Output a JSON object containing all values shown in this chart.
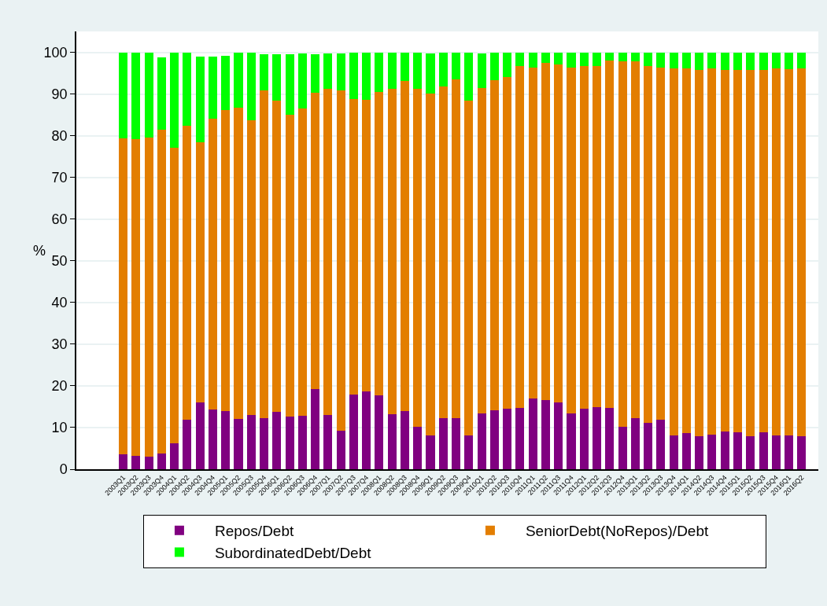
{
  "chart_data": {
    "type": "bar",
    "stacked": true,
    "categories": [
      "2003Q1",
      "2003Q2",
      "2003Q3",
      "2003Q4",
      "2004Q1",
      "2004Q2",
      "2004Q3",
      "2004Q4",
      "2005Q1",
      "2005Q2",
      "2005Q3",
      "2005Q4",
      "2006Q1",
      "2006Q2",
      "2006Q3",
      "2006Q4",
      "2007Q1",
      "2007Q2",
      "2007Q3",
      "2007Q4",
      "2008Q1",
      "2008Q2",
      "2008Q3",
      "2008Q4",
      "2009Q1",
      "2009Q2",
      "2009Q3",
      "2009Q4",
      "2010Q1",
      "2010Q2",
      "2010Q3",
      "2010Q4",
      "2011Q1",
      "2011Q2",
      "2011Q3",
      "2011Q4",
      "2012Q1",
      "2012Q2",
      "2012Q3",
      "2012Q4",
      "2013Q1",
      "2013Q2",
      "2013Q3",
      "2013Q4",
      "2014Q1",
      "2014Q2",
      "2014Q3",
      "2014Q4",
      "2015Q1",
      "2015Q2",
      "2015Q3",
      "2015Q4",
      "2016Q1",
      "2016Q2"
    ],
    "series": [
      {
        "name": "Repos/Debt",
        "color": "#800080",
        "values": [
          3.6,
          3.2,
          3.0,
          3.8,
          6.2,
          11.8,
          16.0,
          14.3,
          13.9,
          12.0,
          13.1,
          12.2,
          13.7,
          12.6,
          12.9,
          19.3,
          13.1,
          9.2,
          18.0,
          18.7,
          17.7,
          13.2,
          14.0,
          10.2,
          8.1,
          12.3,
          12.3,
          8.1,
          13.3,
          14.1,
          14.6,
          14.7,
          17.0,
          16.5,
          16.0,
          13.3,
          14.5,
          14.8,
          14.7,
          10.2,
          12.3,
          11.2,
          11.8,
          8.1,
          8.7,
          8.0,
          8.3,
          9.1,
          8.8,
          7.9,
          8.8,
          8.1,
          8.2,
          8.0
        ]
      },
      {
        "name": "SeniorDebt(NoRepos)/Debt",
        "color": "#e37e00",
        "values": [
          75.8,
          75.9,
          76.5,
          77.6,
          70.9,
          70.6,
          62.5,
          69.7,
          72.3,
          74.7,
          70.6,
          78.6,
          74.8,
          72.5,
          73.7,
          71.0,
          78.1,
          81.6,
          70.7,
          69.9,
          72.7,
          78.0,
          79.2,
          81.0,
          82.0,
          79.5,
          81.2,
          80.3,
          78.1,
          79.2,
          79.4,
          82.0,
          79.4,
          80.9,
          81.1,
          83.1,
          82.2,
          81.9,
          83.4,
          87.7,
          85.6,
          85.5,
          84.6,
          88.0,
          87.5,
          87.8,
          87.8,
          86.7,
          86.9,
          87.9,
          87.0,
          88.0,
          87.8,
          88.2
        ]
      },
      {
        "name": "SubordinatedDebt/Debt",
        "color": "#00ff00",
        "values": [
          20.6,
          20.9,
          20.5,
          17.3,
          22.9,
          17.6,
          20.5,
          15.0,
          12.9,
          13.3,
          16.3,
          8.7,
          11.0,
          14.5,
          13.1,
          9.3,
          8.5,
          8.9,
          11.2,
          11.3,
          9.5,
          8.7,
          6.7,
          8.7,
          9.6,
          8.1,
          6.4,
          11.5,
          8.3,
          6.6,
          5.9,
          3.2,
          3.5,
          2.5,
          2.8,
          3.5,
          3.2,
          3.2,
          1.8,
          2.0,
          2.0,
          3.3,
          3.6,
          3.9,
          3.8,
          4.2,
          3.9,
          4.2,
          4.3,
          4.2,
          4.2,
          3.9,
          4.0,
          3.8
        ]
      }
    ],
    "ylim": [
      0,
      105
    ],
    "yticks": [
      0,
      10,
      20,
      30,
      40,
      50,
      60,
      70,
      80,
      90,
      100
    ],
    "ylabel": "%",
    "grid": "y",
    "legend": "bottom"
  }
}
